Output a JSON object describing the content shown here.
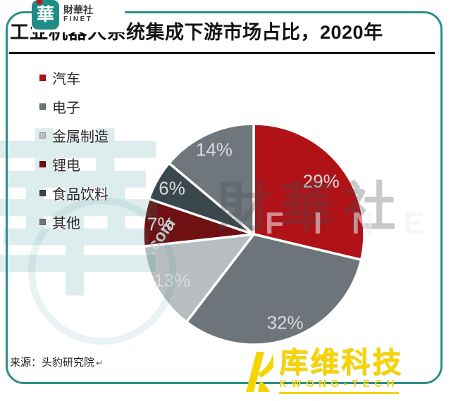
{
  "brand": {
    "seal_char": "華",
    "name_cn": "財華社",
    "name_en": "FINET"
  },
  "title": "工业机器人系统集成下游市场占比，2020年",
  "chart_data": {
    "type": "pie",
    "title": "工业机器人系统集成下游市场占比，2020年",
    "labels": [
      "汽车",
      "电子",
      "金属制造",
      "锂电",
      "食品饮料",
      "其他"
    ],
    "values": [
      29,
      32,
      13,
      7,
      6,
      14
    ],
    "unit": "%",
    "data_labels": [
      "29%",
      "32%",
      "13%",
      "7%",
      "6%",
      "14%"
    ],
    "colors": [
      "#b11218",
      "#6d757b",
      "#b8bdc0",
      "#6f1013",
      "#3a474d",
      "#6f777d"
    ],
    "slice_label_color": "#dadcde",
    "start_angle": "12-oclock, clockwise",
    "legend_position": "left"
  },
  "watermark": {
    "seal_char": "華",
    "dotcom": ".com",
    "brand_cn": "財華社",
    "brand_en": "FINET"
  },
  "source": "来源：头豹研究院",
  "source_return_mark": "↵",
  "footer_logo": {
    "name_cn": "库维科技",
    "name_en": "KWONG-TECH",
    "color": "#f5d400"
  }
}
